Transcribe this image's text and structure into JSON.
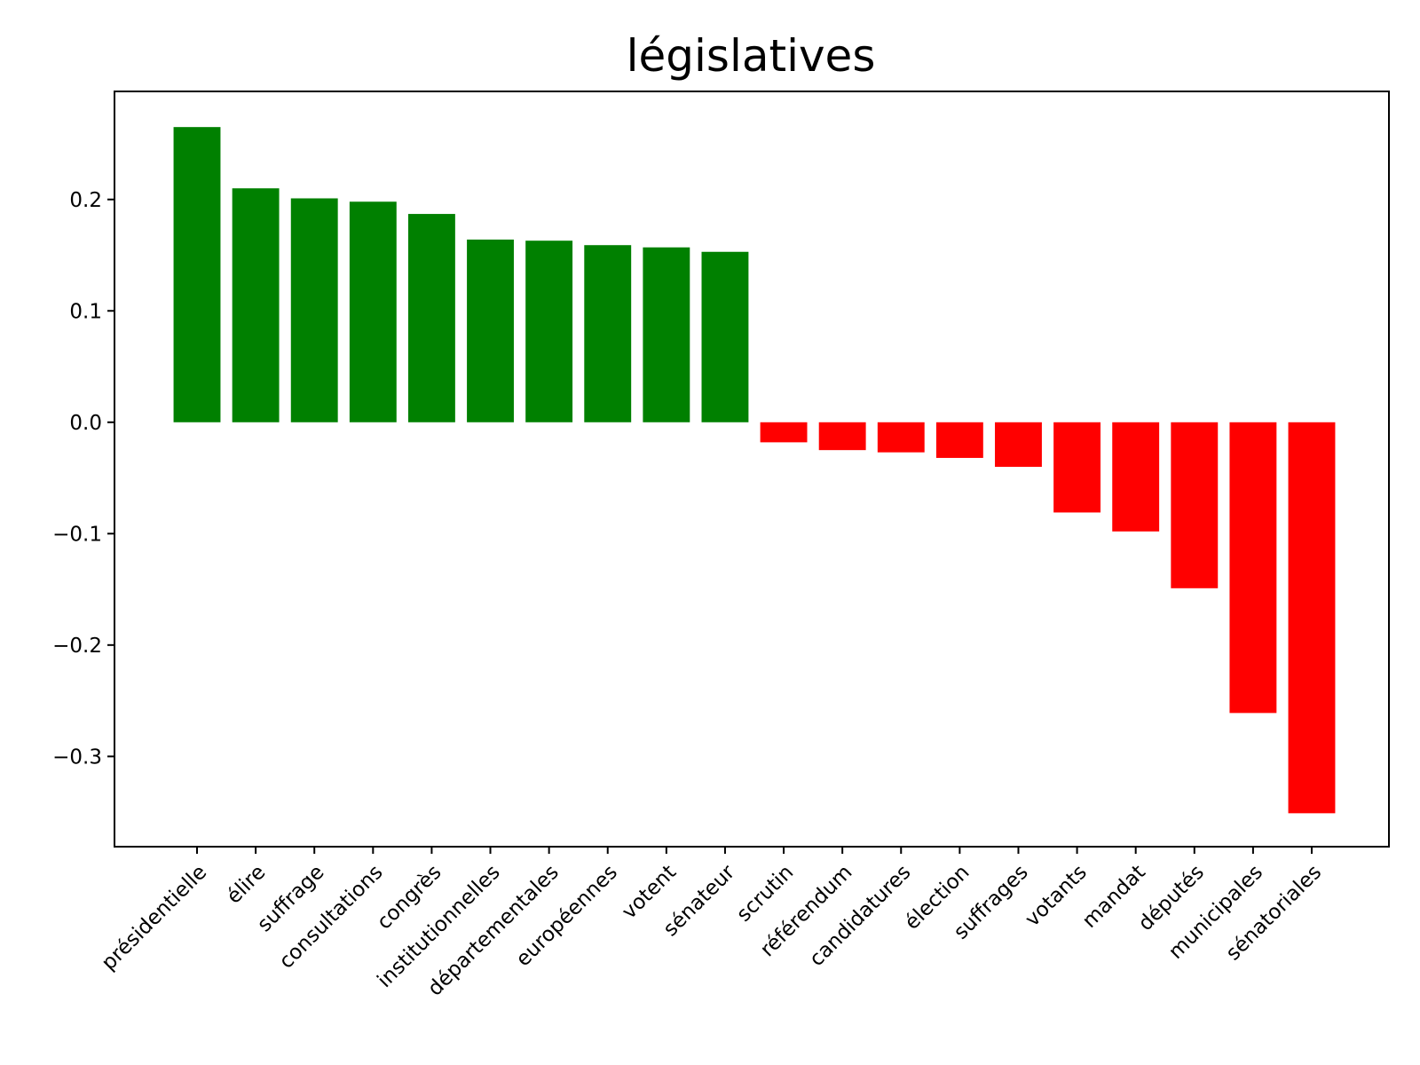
{
  "chart_data": {
    "type": "bar",
    "title": "législatives",
    "xlabel": "",
    "ylabel": "",
    "ylim": [
      -0.381,
      0.297
    ],
    "yticks": [
      {
        "value": 0.2,
        "label": "0.2"
      },
      {
        "value": 0.1,
        "label": "0.1"
      },
      {
        "value": 0.0,
        "label": "0.0"
      },
      {
        "value": -0.1,
        "label": "−0.1"
      },
      {
        "value": -0.2,
        "label": "−0.2"
      },
      {
        "value": -0.3,
        "label": "−0.3"
      }
    ],
    "positive_color": "#008000",
    "negative_color": "#ff0000",
    "grid": false,
    "categories": [
      "présidentielle",
      "élire",
      "suffrage",
      "consultations",
      "congrès",
      "institutionnelles",
      "départementales",
      "européennes",
      "votent",
      "sénateur",
      "scrutin",
      "référendum",
      "candidatures",
      "élection",
      "suffrages",
      "votants",
      "mandat",
      "députés",
      "municipales",
      "sénatoriales"
    ],
    "values": [
      0.265,
      0.21,
      0.201,
      0.198,
      0.187,
      0.164,
      0.163,
      0.159,
      0.157,
      0.153,
      -0.018,
      -0.025,
      -0.027,
      -0.032,
      -0.04,
      -0.081,
      -0.098,
      -0.149,
      -0.261,
      -0.351
    ]
  }
}
